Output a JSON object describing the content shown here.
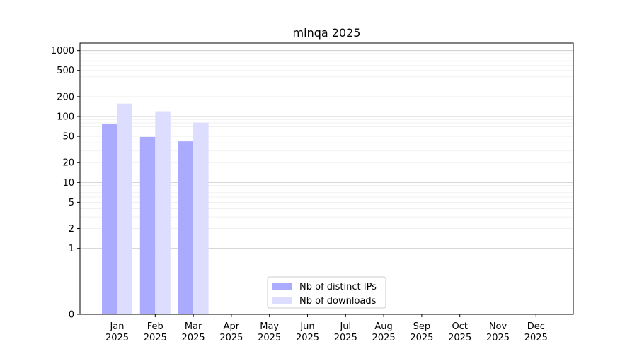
{
  "chart_data": {
    "type": "bar",
    "title": "minqa 2025",
    "xlabel": "",
    "ylabel": "",
    "yscale": "symlog",
    "ylim": [
      0,
      1300
    ],
    "yticks": [
      0,
      1,
      2,
      5,
      10,
      20,
      50,
      100,
      200,
      500,
      1000
    ],
    "categories": [
      [
        "Jan",
        "2025"
      ],
      [
        "Feb",
        "2025"
      ],
      [
        "Mar",
        "2025"
      ],
      [
        "Apr",
        "2025"
      ],
      [
        "May",
        "2025"
      ],
      [
        "Jun",
        "2025"
      ],
      [
        "Jul",
        "2025"
      ],
      [
        "Aug",
        "2025"
      ],
      [
        "Sep",
        "2025"
      ],
      [
        "Oct",
        "2025"
      ],
      [
        "Nov",
        "2025"
      ],
      [
        "Dec",
        "2025"
      ]
    ],
    "series": [
      {
        "name": "Nb of distinct IPs",
        "color": "#aaaaff",
        "values": [
          78,
          49,
          42,
          0,
          0,
          0,
          0,
          0,
          0,
          0,
          0,
          0
        ]
      },
      {
        "name": "Nb of downloads",
        "color": "#ddddff",
        "values": [
          157,
          120,
          81,
          0,
          0,
          0,
          0,
          0,
          0,
          0,
          0,
          0
        ]
      }
    ],
    "grid": true,
    "legend_position": "bottom-center"
  }
}
